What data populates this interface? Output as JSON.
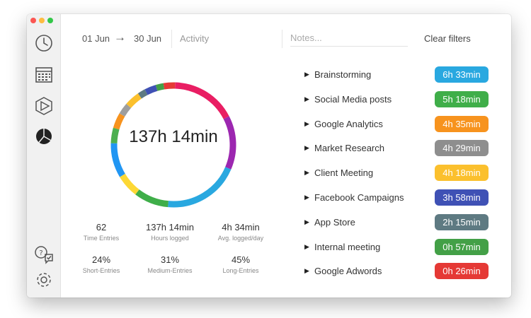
{
  "header": {
    "date_from": "01 Jun",
    "arrow": "→",
    "date_to": "30 Jun",
    "activity_label": "Activity",
    "notes_placeholder": "Notes...",
    "clear_filters": "Clear filters"
  },
  "summary": {
    "total": "137h 14min"
  },
  "stats": [
    {
      "value": "62",
      "label": "Time Entries"
    },
    {
      "value": "137h 14min",
      "label": "Hours logged"
    },
    {
      "value": "4h 34min",
      "label": "Avg. logged/day"
    },
    {
      "value": "24%",
      "label": "Short-Entries"
    },
    {
      "value": "31%",
      "label": "Medium-Entries"
    },
    {
      "value": "45%",
      "label": "Long-Entries"
    }
  ],
  "projects": [
    {
      "name": "Brainstorming",
      "duration": "6h 33min",
      "color": "#29a8e0"
    },
    {
      "name": "Social Media posts",
      "duration": "5h 18min",
      "color": "#3fae49"
    },
    {
      "name": "Google Analytics",
      "duration": "4h 35min",
      "color": "#f7931e"
    },
    {
      "name": "Market Research",
      "duration": "4h 29min",
      "color": "#8e8e8e"
    },
    {
      "name": "Client Meeting",
      "duration": "4h 18min",
      "color": "#fbc02d"
    },
    {
      "name": "Facebook Campaigns",
      "duration": "3h 58min",
      "color": "#3f51b5"
    },
    {
      "name": "App Store",
      "duration": "2h 15min",
      "color": "#5e7a82"
    },
    {
      "name": "Internal meeting",
      "duration": "0h 57min",
      "color": "#43a047"
    },
    {
      "name": "Google Adwords",
      "duration": "0h 26min",
      "color": "#e53935"
    }
  ],
  "donut": {
    "segments": [
      {
        "name": "magenta",
        "value": 17,
        "color": "#e91e63"
      },
      {
        "name": "purple",
        "value": 14,
        "color": "#9c27b0"
      },
      {
        "name": "blue",
        "value": 20,
        "color": "#29a8e0"
      },
      {
        "name": "green",
        "value": 9,
        "color": "#3fae49"
      },
      {
        "name": "yellow",
        "value": 6,
        "color": "#fdd835"
      },
      {
        "name": "blue-2",
        "value": 9,
        "color": "#2196f3"
      },
      {
        "name": "green-2",
        "value": 4,
        "color": "#4caf50"
      },
      {
        "name": "orange",
        "value": 4,
        "color": "#f7931e"
      },
      {
        "name": "grey",
        "value": 3,
        "color": "#9e9e9e"
      },
      {
        "name": "yellow-2",
        "value": 4,
        "color": "#fbc02d"
      },
      {
        "name": "teal",
        "value": 2,
        "color": "#5e7a82"
      },
      {
        "name": "indigo",
        "value": 3,
        "color": "#3f51b5"
      },
      {
        "name": "green-3",
        "value": 2,
        "color": "#43a047"
      },
      {
        "name": "red",
        "value": 3,
        "color": "#e53935"
      }
    ]
  }
}
